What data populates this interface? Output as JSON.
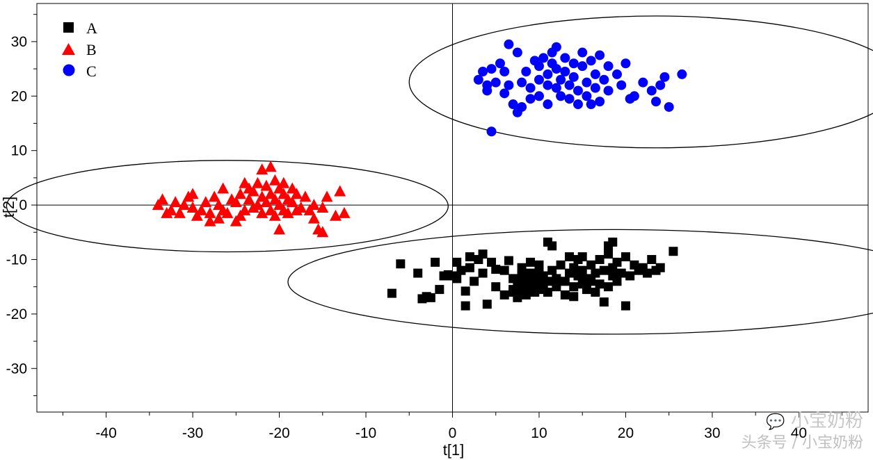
{
  "chart_data": {
    "type": "scatter",
    "title": "",
    "xlabel": "t[1]",
    "ylabel": "t[2]",
    "xlim": [
      -48,
      48
    ],
    "ylim": [
      -38,
      37
    ],
    "xticks": [
      -40,
      -30,
      -20,
      -10,
      0,
      10,
      20,
      30,
      40
    ],
    "yticks": [
      30,
      20,
      10,
      0,
      -10,
      -20,
      -30
    ],
    "tick_labels_x": [
      "-40",
      "-30",
      "-20",
      "-10",
      "0",
      "10",
      "20",
      "30",
      "40"
    ],
    "tick_labels_y": [
      "30",
      "20",
      "10",
      "0",
      "-10",
      "-20",
      "-30"
    ],
    "legend_position": "top-left",
    "series": [
      {
        "name": "A",
        "marker": "square",
        "color": "#000000",
        "points": [
          [
            -7.0,
            -16.2
          ],
          [
            -6.0,
            -10.8
          ],
          [
            -4.0,
            -12.5
          ],
          [
            -3.5,
            -17.2
          ],
          [
            -3.0,
            -16.8
          ],
          [
            -2.5,
            -17.0
          ],
          [
            -2.0,
            -10.5
          ],
          [
            -1.5,
            -15.5
          ],
          [
            -1.0,
            -13.0
          ],
          [
            -0.5,
            -12.8
          ],
          [
            0.0,
            -13.0
          ],
          [
            0.5,
            -13.5
          ],
          [
            0.5,
            -10.5
          ],
          [
            1.0,
            -12.0
          ],
          [
            1.5,
            -15.8
          ],
          [
            1.5,
            -18.5
          ],
          [
            2.0,
            -9.5
          ],
          [
            2.0,
            -11.5
          ],
          [
            2.5,
            -14.0
          ],
          [
            3.0,
            -10.0
          ],
          [
            3.5,
            -12.5
          ],
          [
            3.5,
            -9.0
          ],
          [
            4.0,
            -18.2
          ],
          [
            4.5,
            -10.5
          ],
          [
            5.0,
            -15.0
          ],
          [
            5.0,
            -11.8
          ],
          [
            6.0,
            -16.5
          ],
          [
            6.0,
            -12.0
          ],
          [
            6.5,
            -10.2
          ],
          [
            7.0,
            -15.5
          ],
          [
            7.0,
            -13.5
          ],
          [
            7.0,
            -16.0
          ],
          [
            7.5,
            -14.5
          ],
          [
            7.5,
            -17.0
          ],
          [
            8.0,
            -13.0
          ],
          [
            8.0,
            -15.5
          ],
          [
            8.0,
            -11.5
          ],
          [
            8.5,
            -14.0
          ],
          [
            8.5,
            -16.5
          ],
          [
            9.0,
            -12.5
          ],
          [
            9.0,
            -15.0
          ],
          [
            9.0,
            -10.5
          ],
          [
            9.5,
            -13.5
          ],
          [
            9.5,
            -16.0
          ],
          [
            10.0,
            -11.0
          ],
          [
            10.0,
            -14.5
          ],
          [
            10.0,
            -12.5
          ],
          [
            10.5,
            -15.5
          ],
          [
            10.5,
            -13.0
          ],
          [
            11.0,
            -16.0
          ],
          [
            11.0,
            -14.0
          ],
          [
            11.0,
            -6.8
          ],
          [
            11.5,
            -12.0
          ],
          [
            11.5,
            -7.5
          ],
          [
            12.0,
            -13.5
          ],
          [
            12.0,
            -15.0
          ],
          [
            12.5,
            -11.0
          ],
          [
            13.0,
            -16.5
          ],
          [
            13.0,
            -14.0
          ],
          [
            13.5,
            -12.5
          ],
          [
            13.5,
            -9.5
          ],
          [
            14.0,
            -15.0
          ],
          [
            14.0,
            -11.5
          ],
          [
            14.0,
            -16.8
          ],
          [
            14.5,
            -13.0
          ],
          [
            14.5,
            -10.0
          ],
          [
            15.0,
            -14.5
          ],
          [
            15.0,
            -12.0
          ],
          [
            15.0,
            -9.5
          ],
          [
            15.5,
            -15.5
          ],
          [
            15.5,
            -13.5
          ],
          [
            16.0,
            -11.0
          ],
          [
            16.0,
            -14.0
          ],
          [
            16.5,
            -16.0
          ],
          [
            16.5,
            -12.5
          ],
          [
            17.0,
            -10.0
          ],
          [
            17.0,
            -14.5
          ],
          [
            17.5,
            -12.0
          ],
          [
            17.5,
            -17.8
          ],
          [
            18.0,
            -15.0
          ],
          [
            18.0,
            -9.0
          ],
          [
            18.0,
            -7.5
          ],
          [
            18.5,
            -13.0
          ],
          [
            18.5,
            -6.8
          ],
          [
            18.5,
            -11.5
          ],
          [
            19.0,
            -14.0
          ],
          [
            19.0,
            -10.5
          ],
          [
            19.5,
            -12.5
          ],
          [
            20.0,
            -18.5
          ],
          [
            20.0,
            -9.5
          ],
          [
            20.5,
            -13.0
          ],
          [
            21.0,
            -11.0
          ],
          [
            21.5,
            -12.0
          ],
          [
            22.0,
            -11.5
          ],
          [
            22.5,
            -12.5
          ],
          [
            23.0,
            -10.0
          ],
          [
            23.5,
            -12.0
          ],
          [
            24.0,
            -11.5
          ],
          [
            25.5,
            -8.5
          ]
        ]
      },
      {
        "name": "B",
        "marker": "triangle",
        "color": "#ff0000",
        "points": [
          [
            -34.0,
            0.0
          ],
          [
            -33.5,
            1.0
          ],
          [
            -33.0,
            -1.5
          ],
          [
            -32.5,
            -1.0
          ],
          [
            -32.0,
            0.5
          ],
          [
            -31.5,
            -1.5
          ],
          [
            -31.0,
            0.0
          ],
          [
            -30.5,
            1.5
          ],
          [
            -30.0,
            -0.5
          ],
          [
            -30.0,
            2.0
          ],
          [
            -29.5,
            -2.0
          ],
          [
            -29.0,
            -1.0
          ],
          [
            -28.5,
            0.5
          ],
          [
            -28.0,
            -3.0
          ],
          [
            -28.0,
            -1.5
          ],
          [
            -27.5,
            1.5
          ],
          [
            -27.0,
            -2.5
          ],
          [
            -27.0,
            0.0
          ],
          [
            -26.5,
            3.0
          ],
          [
            -26.5,
            -1.0
          ],
          [
            -26.0,
            -1.5
          ],
          [
            -25.5,
            1.0
          ],
          [
            -25.0,
            -3.0
          ],
          [
            -25.0,
            0.5
          ],
          [
            -24.5,
            -2.0
          ],
          [
            -24.5,
            2.0
          ],
          [
            -24.0,
            4.0
          ],
          [
            -24.0,
            -1.0
          ],
          [
            -23.5,
            1.0
          ],
          [
            -23.5,
            3.0
          ],
          [
            -23.0,
            -0.5
          ],
          [
            -23.0,
            2.5
          ],
          [
            -22.5,
            0.0
          ],
          [
            -22.5,
            4.0
          ],
          [
            -22.0,
            -1.5
          ],
          [
            -22.0,
            1.5
          ],
          [
            -22.0,
            6.5
          ],
          [
            -21.5,
            3.5
          ],
          [
            -21.5,
            0.5
          ],
          [
            -21.0,
            -1.0
          ],
          [
            -21.0,
            2.0
          ],
          [
            -21.0,
            7.0
          ],
          [
            -20.5,
            4.5
          ],
          [
            -20.5,
            1.0
          ],
          [
            -20.5,
            -2.0
          ],
          [
            -20.0,
            3.0
          ],
          [
            -20.0,
            0.0
          ],
          [
            -20.0,
            -4.5
          ],
          [
            -19.5,
            2.0
          ],
          [
            -19.5,
            -1.0
          ],
          [
            -19.5,
            4.0
          ],
          [
            -19.0,
            1.0
          ],
          [
            -19.0,
            -1.5
          ],
          [
            -18.5,
            3.0
          ],
          [
            -18.5,
            0.5
          ],
          [
            -18.0,
            -1.0
          ],
          [
            -18.0,
            2.0
          ],
          [
            -17.5,
            -0.5
          ],
          [
            -17.0,
            1.5
          ],
          [
            -16.5,
            -1.0
          ],
          [
            -16.0,
            -2.5
          ],
          [
            -16.0,
            0.0
          ],
          [
            -15.5,
            -4.5
          ],
          [
            -15.0,
            -0.5
          ],
          [
            -15.0,
            -5.0
          ],
          [
            -14.5,
            1.5
          ],
          [
            -13.5,
            -2.0
          ],
          [
            -13.0,
            2.5
          ],
          [
            -12.5,
            -1.5
          ]
        ]
      },
      {
        "name": "C",
        "marker": "circle",
        "color": "#0000ff",
        "points": [
          [
            4.5,
            13.5
          ],
          [
            3.0,
            23.0
          ],
          [
            3.5,
            24.5
          ],
          [
            4.0,
            22.0
          ],
          [
            4.0,
            21.0
          ],
          [
            4.5,
            25.0
          ],
          [
            5.0,
            22.5
          ],
          [
            5.5,
            26.0
          ],
          [
            6.0,
            24.5
          ],
          [
            6.5,
            29.5
          ],
          [
            6.0,
            20.5
          ],
          [
            6.5,
            22.0
          ],
          [
            7.0,
            18.5
          ],
          [
            7.5,
            28.0
          ],
          [
            7.5,
            17.0
          ],
          [
            8.0,
            22.5
          ],
          [
            8.0,
            18.0
          ],
          [
            8.5,
            24.5
          ],
          [
            9.0,
            21.5
          ],
          [
            9.0,
            19.5
          ],
          [
            9.5,
            26.5
          ],
          [
            10.0,
            23.0
          ],
          [
            10.0,
            25.5
          ],
          [
            10.0,
            20.0
          ],
          [
            10.5,
            27.0
          ],
          [
            11.0,
            22.0
          ],
          [
            11.0,
            24.0
          ],
          [
            11.0,
            18.5
          ],
          [
            11.5,
            28.0
          ],
          [
            11.5,
            26.0
          ],
          [
            12.0,
            21.5
          ],
          [
            12.0,
            25.0
          ],
          [
            12.0,
            29.0
          ],
          [
            12.5,
            23.0
          ],
          [
            12.5,
            20.0
          ],
          [
            13.0,
            27.0
          ],
          [
            13.0,
            24.5
          ],
          [
            13.5,
            22.0
          ],
          [
            13.5,
            19.5
          ],
          [
            14.0,
            26.0
          ],
          [
            14.0,
            23.5
          ],
          [
            14.5,
            21.0
          ],
          [
            14.5,
            18.5
          ],
          [
            15.0,
            28.0
          ],
          [
            15.0,
            25.5
          ],
          [
            15.5,
            22.5
          ],
          [
            15.5,
            20.0
          ],
          [
            16.0,
            26.5
          ],
          [
            16.0,
            18.5
          ],
          [
            16.5,
            24.0
          ],
          [
            16.5,
            21.5
          ],
          [
            17.0,
            27.5
          ],
          [
            17.0,
            19.0
          ],
          [
            17.5,
            23.0
          ],
          [
            18.0,
            25.5
          ],
          [
            18.0,
            21.0
          ],
          [
            19.0,
            24.0
          ],
          [
            19.5,
            22.0
          ],
          [
            20.0,
            26.0
          ],
          [
            20.5,
            19.5
          ],
          [
            21.0,
            20.0
          ],
          [
            22.0,
            22.5
          ],
          [
            23.0,
            21.0
          ],
          [
            23.5,
            19.0
          ],
          [
            24.0,
            22.0
          ],
          [
            24.5,
            23.5
          ],
          [
            25.0,
            18.0
          ],
          [
            26.5,
            24.0
          ]
        ]
      }
    ],
    "ellipses": [
      {
        "group": "A",
        "cx": 18.5,
        "cy": -14.1,
        "rx": 37.5,
        "ry": 9.6
      },
      {
        "group": "B",
        "cx": -26.0,
        "cy": -0.2,
        "rx": 25.5,
        "ry": 8.4
      },
      {
        "group": "C",
        "cx": 23.5,
        "cy": 22.6,
        "rx": 28.5,
        "ry": 12.1
      }
    ]
  },
  "watermark": {
    "line1": "小宝奶粉",
    "line2": "头条号 / 小宝奶粉"
  }
}
